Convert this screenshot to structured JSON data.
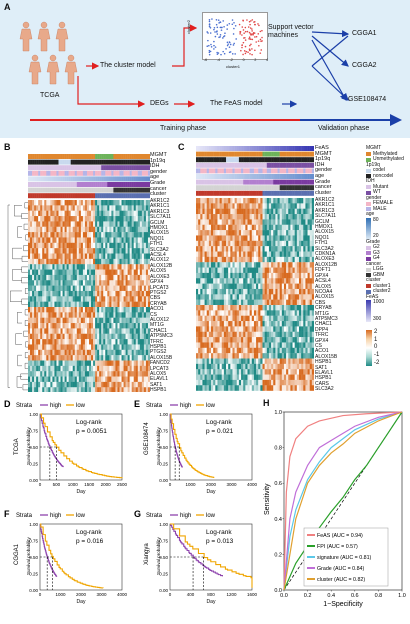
{
  "panelA": {
    "letter": "A",
    "cohort": "TCGA",
    "cluster_model": "The cluster model",
    "svm": "Support vector machines",
    "degs": "DEGs",
    "feas_model": "The FeAS model",
    "validation_sets": [
      "CGGA1",
      "CGGA2",
      "GSE108474"
    ],
    "training_phase": "Training phase",
    "validation_phase": "Validation phase",
    "scatter_xlabel": "cluster1",
    "scatter_ylabel": "cluster2",
    "scatter_xticks": [
      "-6",
      "-4",
      "-2",
      "0",
      "2",
      "4"
    ]
  },
  "panelB": {
    "letter": "B",
    "row_labels": [
      "MGMT",
      "1p19q",
      "IDH",
      "gender",
      "age",
      "Grade",
      "cancer",
      "cluster"
    ],
    "genes": [
      "AKR1C2",
      "AKR1C1",
      "AKR1C3",
      "SLC7A11",
      "GCLM",
      "HMOX1",
      "ALOX15",
      "NQO1",
      "FTH1",
      "SLC3A2",
      "ACSL4",
      "ALOX12",
      "ALOX12B",
      "ALOX5",
      "ALOXE3",
      "GPX4",
      "LPCAT3",
      "PTGS2",
      "CBS",
      "CRYAB",
      "ACO1",
      "CS",
      "ALOX12",
      "MT1G",
      "CHAC1",
      "ATP5MC3",
      "TFRC",
      "HSPB1",
      "PTGS2",
      "ALOX15B",
      "FANCD2",
      "LPCAT3",
      "ALOX5",
      "ELAVL1",
      "SAT1",
      "HSPB1"
    ]
  },
  "panelC": {
    "letter": "C",
    "row_labels": [
      "FeAS",
      "MGMT",
      "1p19q",
      "IDH",
      "gender",
      "age",
      "Grade",
      "cancer",
      "cluster"
    ],
    "genes": [
      "AKR1C2",
      "AKR1C1",
      "AKR1C3",
      "SLC7A11",
      "GCLM",
      "HMOX1",
      "ALOX15",
      "NQO1",
      "FTH1",
      "SLC3A2",
      "CDKN1A",
      "ALOXE3",
      "ALOX12B",
      "FDFT1",
      "GPX4",
      "ACSL4",
      "ALOX5",
      "NCOA4",
      "ALOX15",
      "CBS",
      "CRYAB",
      "MT1G",
      "ATP5MC3",
      "CHAC1",
      "DPP4",
      "TFRC",
      "GPX4",
      "CS",
      "ACO1",
      "ALOX15B",
      "HSPB1",
      "SAT1",
      "ELAVL1",
      "HSPB1",
      "CARS",
      "SLC3A2"
    ]
  },
  "legend": {
    "MGMT": {
      "title": "MGMT",
      "items": [
        {
          "label": "Methylated",
          "color": "#e0872e"
        },
        {
          "label": "Unmethylated",
          "color": "#6db35a"
        }
      ]
    },
    "1p19q": {
      "title": "1p19q",
      "items": [
        {
          "label": "codel",
          "color": "#c8d9ee"
        },
        {
          "label": "noncodel",
          "color": "#222222"
        }
      ]
    },
    "IDH": {
      "title": "IDH",
      "items": [
        {
          "label": "Mutant",
          "color": "#d9c3e6"
        },
        {
          "label": "WT",
          "color": "#7a4fa3"
        }
      ]
    },
    "gender": {
      "title": "gender",
      "items": [
        {
          "label": "FEMALE",
          "color": "#f4b6c6"
        },
        {
          "label": "MALE",
          "color": "#b5b5e8"
        }
      ]
    },
    "age": {
      "title": "age",
      "ticks": [
        "80",
        "20"
      ],
      "colors": [
        "#2f6fb5",
        "#e3eef8"
      ]
    },
    "Grade": {
      "title": "Grade",
      "items": [
        {
          "label": "G2",
          "color": "#d9c3e6"
        },
        {
          "label": "G3",
          "color": "#b27fcf"
        },
        {
          "label": "G4",
          "color": "#7a3aa0"
        }
      ]
    },
    "cancer": {
      "title": "cancer",
      "items": [
        {
          "label": "LGG",
          "color": "#d3d3d3"
        },
        {
          "label": "GBM",
          "color": "#333333"
        }
      ]
    },
    "cluster": {
      "title": "cluster",
      "items": [
        {
          "label": "cluster1",
          "color": "#c0392b"
        },
        {
          "label": "cluster2",
          "color": "#5a6fb0"
        }
      ]
    },
    "FeAS": {
      "title": "FeAS",
      "ticks": [
        "1000",
        "300"
      ],
      "colors": [
        "#3b3bb0",
        "#e8e8f8"
      ]
    },
    "heat": {
      "ticks": [
        "2",
        "1",
        "0",
        "-1",
        "-2"
      ],
      "colors": [
        "#d86a1f",
        "#f6d3a8",
        "#ffffff",
        "#a8d8d2",
        "#1f8a85"
      ]
    }
  },
  "km": {
    "strata_label": "Strata",
    "high_label": "high",
    "low_label": "low",
    "xlabel": "Day",
    "ylabel": "Survival probability",
    "panels": [
      {
        "letter": "D",
        "cohort": "TCGA",
        "test": "Log-rank",
        "p": "p = 0.0051",
        "xticks": [
          "0",
          "500",
          "1000",
          "1500",
          "2000",
          "2500"
        ],
        "xmax": 2500,
        "median_high": 300,
        "median_low": 500
      },
      {
        "letter": "E",
        "cohort": "GSE108474",
        "test": "Log-rank",
        "p": "p = 0.021",
        "xticks": [
          "0",
          "1000",
          "2000",
          "3000",
          "4000"
        ],
        "xmax": 4000,
        "median_high": 250,
        "median_low": 450
      },
      {
        "letter": "F",
        "cohort": "CGGA1",
        "test": "Log-rank",
        "p": "p = 0.016",
        "xticks": [
          "0",
          "1000",
          "2000",
          "3000",
          "4000"
        ],
        "xmax": 4000,
        "median_high": 350,
        "median_low": 600
      },
      {
        "letter": "G",
        "cohort": "Xiangya",
        "test": "Log-rank",
        "p": "p = 0.013",
        "xticks": [
          "0",
          "400",
          "800",
          "1200",
          "1600"
        ],
        "xmax": 1600,
        "median_high": 450,
        "median_low": 650
      }
    ],
    "yticks": [
      "0.00",
      "0.25",
      "0.50",
      "0.75",
      "1.00"
    ]
  },
  "chart_data": {
    "type": "line",
    "title": "",
    "xlabel": "1−Specificity",
    "ylabel": "Sensitivity",
    "xlim": [
      0,
      1
    ],
    "ylim": [
      0,
      1
    ],
    "xticks": [
      "0.0",
      "0.2",
      "0.4",
      "0.6",
      "0.8",
      "1.0"
    ],
    "yticks": [
      "0.0",
      "0.2",
      "0.4",
      "0.6",
      "0.8",
      "1.0"
    ],
    "series": [
      {
        "name": "FeAS (AUC = 0.94)",
        "color": "#f08080",
        "x": [
          0,
          0.02,
          0.05,
          0.1,
          0.2,
          0.3,
          0.5,
          0.7,
          1
        ],
        "y": [
          0,
          0.55,
          0.75,
          0.85,
          0.92,
          0.95,
          0.98,
          0.99,
          1
        ]
      },
      {
        "name": "FPI (AUC = 0.57)",
        "color": "#2aa02a",
        "x": [
          0,
          0.1,
          0.2,
          0.3,
          0.4,
          0.5,
          0.6,
          0.7,
          0.8,
          0.9,
          1
        ],
        "y": [
          0,
          0.15,
          0.25,
          0.35,
          0.44,
          0.52,
          0.62,
          0.7,
          0.8,
          0.9,
          1
        ]
      },
      {
        "name": "signature (AUC = 0.81)",
        "color": "#5bc8e8",
        "x": [
          0,
          0.05,
          0.1,
          0.2,
          0.3,
          0.4,
          0.6,
          0.8,
          1
        ],
        "y": [
          0,
          0.3,
          0.45,
          0.62,
          0.72,
          0.8,
          0.9,
          0.96,
          1
        ]
      },
      {
        "name": "Grade (AUC = 0.84)",
        "color": "#c06fd8",
        "x": [
          0,
          0.05,
          0.1,
          0.2,
          0.3,
          0.45,
          0.6,
          0.8,
          1
        ],
        "y": [
          0,
          0.4,
          0.55,
          0.7,
          0.8,
          0.86,
          0.92,
          0.97,
          1
        ]
      },
      {
        "name": "cluster (AUC = 0.82)",
        "color": "#e0a030",
        "x": [
          0,
          0.1,
          0.2,
          0.3,
          0.4,
          0.5,
          0.6,
          0.8,
          1
        ],
        "y": [
          0,
          0.4,
          0.6,
          0.7,
          0.77,
          0.82,
          0.88,
          0.95,
          1
        ]
      }
    ]
  },
  "panelH_letter": "H"
}
